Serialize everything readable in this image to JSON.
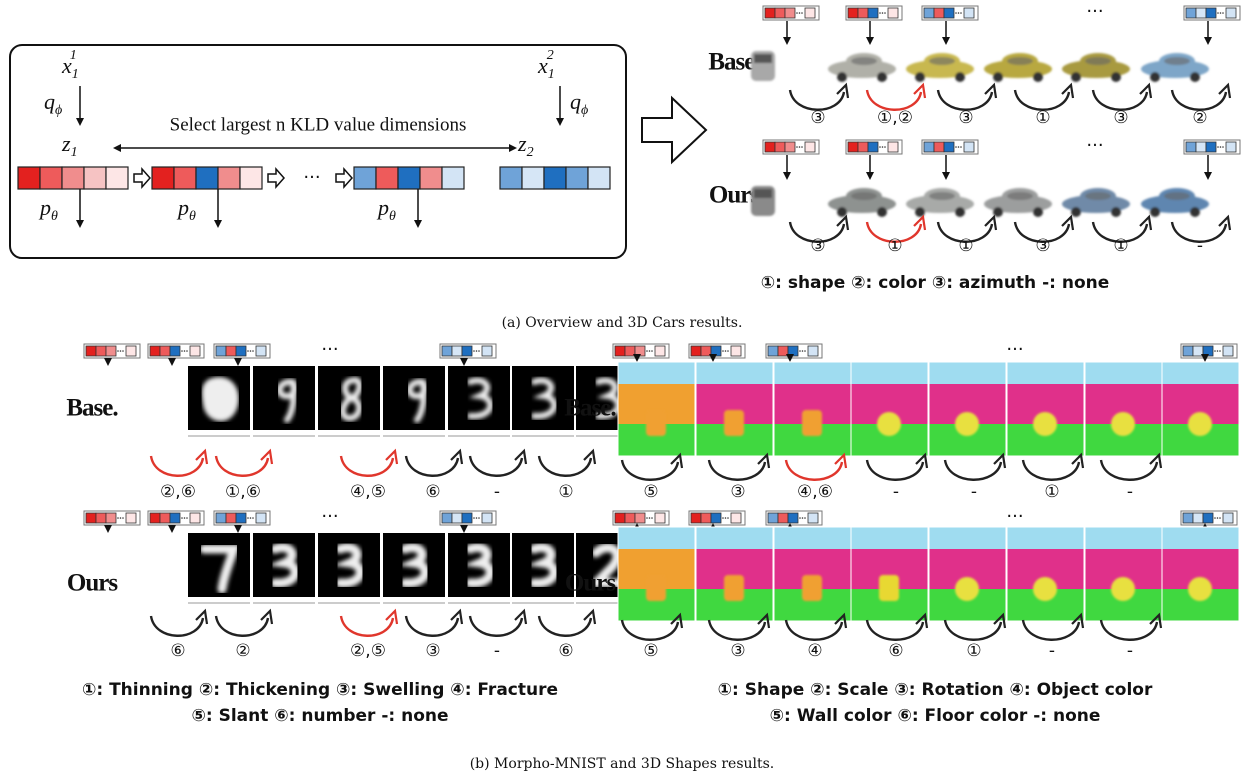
{
  "overview": {
    "input1": {
      "base": "x",
      "sub": "1",
      "sup": "1"
    },
    "input2": {
      "base": "x",
      "sub": "1",
      "sup": "2"
    },
    "encoder": {
      "base": "q",
      "sub": "ϕ"
    },
    "decoder": {
      "base": "p",
      "sub": "θ"
    },
    "latent1": {
      "base": "z",
      "sub": "1"
    },
    "latent2": {
      "base": "z",
      "sub": "2"
    },
    "instruction": "Select largest n KLD value dimensions",
    "ellipsis": "···"
  },
  "cars": {
    "ellipsis": "···",
    "rows": [
      {
        "label": "Base.",
        "transitions": [
          "③",
          "①,②",
          "③",
          "①",
          "③",
          "②"
        ],
        "arrow_colors": [
          "#222222",
          "#e0362c",
          "#222222",
          "#222222",
          "#222222",
          "#222222"
        ]
      },
      {
        "label": "Ours",
        "transitions": [
          "③",
          "①",
          "①",
          "③",
          "①",
          "-"
        ],
        "arrow_colors": [
          "#222222",
          "#e0362c",
          "#222222",
          "#222222",
          "#222222",
          "#222222"
        ]
      }
    ],
    "legend": [
      "①: shape ②: color ③: azimuth -: none"
    ]
  },
  "caption_a": "(a) Overview and 3D Cars results.",
  "mnist": {
    "ellipsis": "···",
    "rows": [
      {
        "label": "Base.",
        "transitions": [
          "②,⑥",
          "①,⑥",
          "④,⑤",
          "⑥",
          "-",
          "①"
        ],
        "arrow_colors": [
          "#e0362c",
          "#e0362c",
          "#e0362c",
          "#222222",
          "#222222",
          "#222222"
        ]
      },
      {
        "label": "Ours",
        "transitions": [
          "⑥",
          "②",
          "②,⑤",
          "③",
          "-",
          "⑥"
        ],
        "arrow_colors": [
          "#222222",
          "#222222",
          "#e0362c",
          "#222222",
          "#222222",
          "#222222"
        ]
      }
    ],
    "legend": [
      "①: Thinning ②: Thickening ③: Swelling ④: Fracture",
      "⑤: Slant ⑥: number -: none"
    ]
  },
  "shapes": {
    "ellipsis": "···",
    "rows": [
      {
        "label": "Base.",
        "transitions": [
          "⑤",
          "③",
          "④,⑥",
          "-",
          "-",
          "①",
          "-"
        ],
        "arrow_colors": [
          "#222222",
          "#222222",
          "#e0362c",
          "#222222",
          "#222222",
          "#222222",
          "#222222"
        ]
      },
      {
        "label": "Ours",
        "transitions": [
          "⑤",
          "③",
          "④",
          "⑥",
          "①",
          "-",
          "-"
        ],
        "arrow_colors": [
          "#222222",
          "#222222",
          "#222222",
          "#222222",
          "#222222",
          "#222222",
          "#222222"
        ]
      }
    ],
    "legend": [
      "①: Shape ②: Scale ③: Rotation ④: Object color",
      "⑤: Wall color ⑥: Floor color -: none"
    ]
  },
  "caption_b": "(b) Morpho-MNIST and 3D Shapes results."
}
